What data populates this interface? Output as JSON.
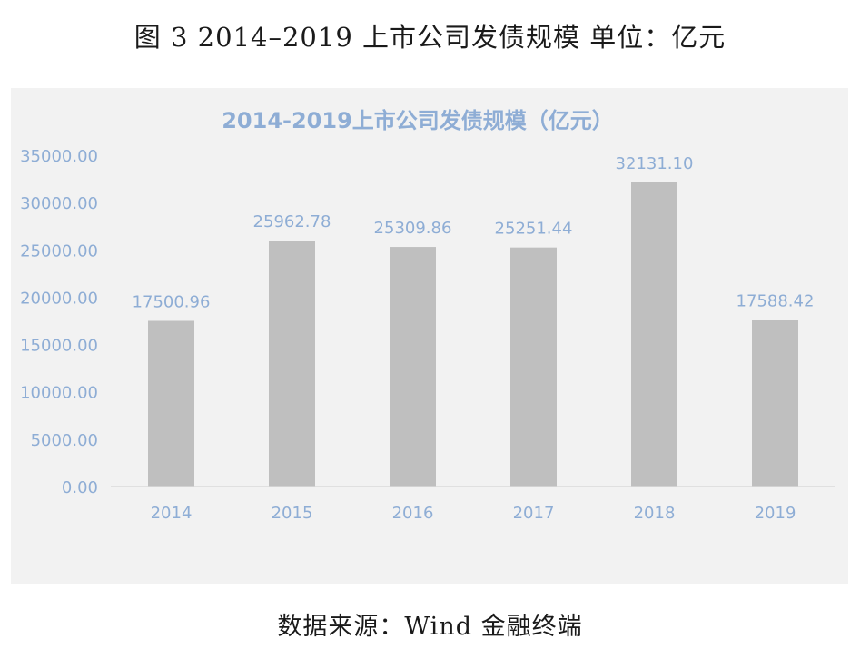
{
  "figure": {
    "caption": "图 3  2014–2019 上市公司发债规模  单位：亿元",
    "source": "数据来源：Wind 金融终端"
  },
  "colors": {
    "bar": "#bfbfbf",
    "text_blue": "#8eadd5",
    "axis_line": "#d9d9d9",
    "panel_bg": "#f2f2f2"
  },
  "chart_data": {
    "type": "bar",
    "title": "2014-2019上市公司发债规模（亿元）",
    "categories": [
      "2014",
      "2015",
      "2016",
      "2017",
      "2018",
      "2019"
    ],
    "values": [
      17500.96,
      25962.78,
      25309.86,
      25251.44,
      32131.1,
      17588.42
    ],
    "value_labels": [
      "17500.96",
      "25962.78",
      "25309.86",
      "25251.44",
      "32131.10",
      "17588.42"
    ],
    "y_ticks": [
      "0.00",
      "5000.00",
      "10000.00",
      "15000.00",
      "20000.00",
      "25000.00",
      "30000.00",
      "35000.00"
    ],
    "ylim": [
      0,
      35000
    ],
    "xlabel": "",
    "ylabel": "",
    "grid": false,
    "legend": "none"
  }
}
